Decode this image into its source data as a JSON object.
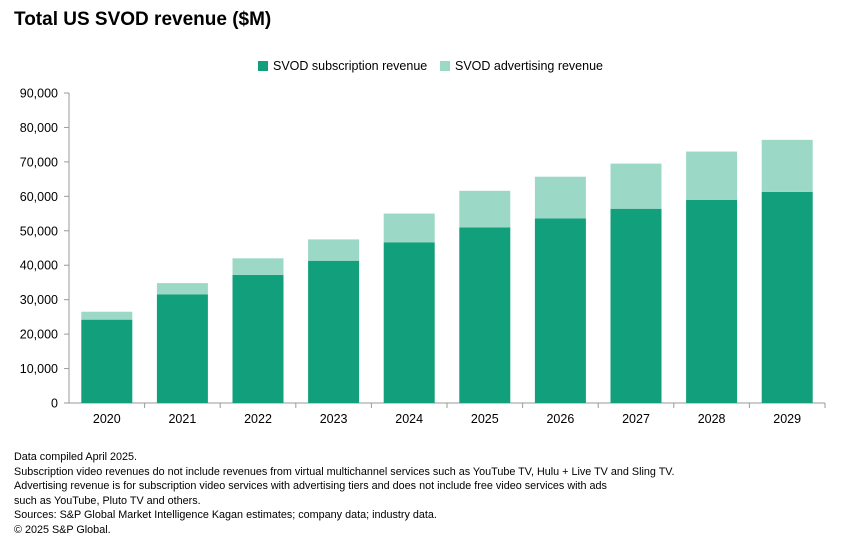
{
  "title": "Total US SVOD revenue ($M)",
  "legend": [
    {
      "label": "SVOD subscription revenue",
      "color": "#11a07b"
    },
    {
      "label": "SVOD advertising revenue",
      "color": "#9bd8c6"
    }
  ],
  "chart_data": {
    "type": "bar",
    "stacked": true,
    "title": "Total US SVOD revenue ($M)",
    "categories": [
      "2020",
      "2021",
      "2022",
      "2023",
      "2024",
      "2025",
      "2026",
      "2027",
      "2028",
      "2029"
    ],
    "series": [
      {
        "name": "SVOD subscription revenue",
        "color": "#11a07b",
        "values": [
          24200,
          31500,
          37200,
          41300,
          46600,
          51000,
          53600,
          56400,
          59000,
          61300
        ]
      },
      {
        "name": "SVOD advertising revenue",
        "color": "#9bd8c6",
        "values": [
          2300,
          3300,
          4800,
          6200,
          8400,
          10600,
          12100,
          13100,
          14000,
          15100
        ]
      }
    ],
    "ylim": [
      0,
      90000
    ],
    "yticks": [
      "0",
      "10,000",
      "20,000",
      "30,000",
      "40,000",
      "50,000",
      "60,000",
      "70,000",
      "80,000",
      "90,000"
    ],
    "ytick_values": [
      0,
      10000,
      20000,
      30000,
      40000,
      50000,
      60000,
      70000,
      80000,
      90000
    ],
    "grid": false,
    "legend_position": "top-center",
    "xlabel": "",
    "ylabel": ""
  },
  "footnotes": [
    "Data compiled April 2025.",
    "Subscription video revenues do not include revenues from virtual multichannel services such as YouTube TV, Hulu + Live TV and Sling TV.",
    "Advertising revenue is for subscription video services with advertising tiers and does not include free video services with ads",
    "such as YouTube, Pluto TV and others.",
    "Sources: S&P Global Market Intelligence Kagan estimates; company data; industry data.",
    "© 2025 S&P Global."
  ]
}
